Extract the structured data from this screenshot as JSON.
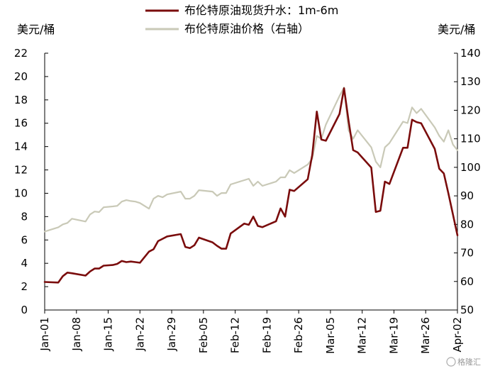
{
  "chart_data": {
    "type": "line",
    "left_unit": "美元/桶",
    "right_unit": "美元/桶",
    "left_axis": {
      "min": 0,
      "max": 22,
      "ticks": [
        0,
        2,
        4,
        6,
        8,
        10,
        12,
        14,
        16,
        18,
        20,
        22
      ]
    },
    "right_axis": {
      "min": 50,
      "max": 140,
      "ticks": [
        50,
        60,
        70,
        80,
        90,
        100,
        110,
        120,
        130,
        140
      ]
    },
    "x_labels": [
      "Jan-01",
      "Jan-08",
      "Jan-15",
      "Jan-22",
      "Jan-29",
      "Feb-05",
      "Feb-12",
      "Feb-19",
      "Feb-26",
      "Mar-05",
      "Mar-12",
      "Mar-19",
      "Mar-26",
      "Apr-02"
    ],
    "x_range": [
      0,
      91
    ],
    "series": [
      {
        "name": "布伦特原油现货升水：1m-6m",
        "axis": "left",
        "color": "#7a0c0c",
        "x": [
          0,
          3,
          4,
          5,
          6,
          9,
          10,
          11,
          12,
          13,
          15,
          16,
          17,
          18,
          19,
          20,
          21,
          23,
          24,
          25,
          26,
          27,
          30,
          31,
          32,
          33,
          34,
          37,
          38,
          39,
          40,
          41,
          44,
          45,
          46,
          47,
          48,
          51,
          52,
          53,
          54,
          55,
          58,
          59,
          60,
          61,
          62,
          65,
          66,
          67,
          68,
          69,
          72,
          73,
          74,
          75,
          76,
          79,
          80,
          81,
          82,
          83,
          86,
          87,
          88,
          89,
          90,
          91
        ],
        "y": [
          2.4,
          2.35,
          2.9,
          3.2,
          3.15,
          2.95,
          3.3,
          3.55,
          3.55,
          3.8,
          3.85,
          3.95,
          4.2,
          4.1,
          4.15,
          4.1,
          4.05,
          5.0,
          5.2,
          5.9,
          6.1,
          6.3,
          6.5,
          5.4,
          5.3,
          5.55,
          6.2,
          5.8,
          5.5,
          5.25,
          5.25,
          6.55,
          7.4,
          7.3,
          8.0,
          7.2,
          7.1,
          7.6,
          8.7,
          8.0,
          10.3,
          10.2,
          11.2,
          13.3,
          17.0,
          14.6,
          14.5,
          16.8,
          19.0,
          16.2,
          13.7,
          13.5,
          12.2,
          8.4,
          8.5,
          11.0,
          10.8,
          13.9,
          13.9,
          16.3,
          16.1,
          16.0,
          13.8,
          12.1,
          11.7,
          10.0,
          8.2,
          6.4
        ]
      },
      {
        "name": "布伦特原油价格（右轴）",
        "axis": "right",
        "color": "#c9c9b7",
        "x": [
          0,
          3,
          4,
          5,
          6,
          9,
          10,
          11,
          12,
          13,
          15,
          16,
          17,
          18,
          19,
          20,
          21,
          23,
          24,
          25,
          26,
          27,
          30,
          31,
          32,
          33,
          34,
          37,
          38,
          39,
          40,
          41,
          44,
          45,
          46,
          47,
          48,
          51,
          52,
          53,
          54,
          55,
          58,
          59,
          60,
          61,
          62,
          65,
          66,
          67,
          68,
          69,
          72,
          73,
          74,
          75,
          76,
          79,
          80,
          81,
          82,
          83,
          86,
          87,
          88,
          89,
          90,
          91
        ],
        "y": [
          77.5,
          79.0,
          80.0,
          80.5,
          82.0,
          81.0,
          83.5,
          84.5,
          84.3,
          86.0,
          86.3,
          86.5,
          88.0,
          88.5,
          88.2,
          88.0,
          87.5,
          85.5,
          89.0,
          90.0,
          89.5,
          90.5,
          91.5,
          89.0,
          89.0,
          90.0,
          92.0,
          91.5,
          90.0,
          91.0,
          91.0,
          94.0,
          95.5,
          96.0,
          93.5,
          95.0,
          93.5,
          95.0,
          96.5,
          96.5,
          99.0,
          98.0,
          101.0,
          103.0,
          111.0,
          110.0,
          115.0,
          125.0,
          128.0,
          113.0,
          110.0,
          113.0,
          107.0,
          102.0,
          100.0,
          107.0,
          108.5,
          116.0,
          115.5,
          121.0,
          119.0,
          120.5,
          114.0,
          111.0,
          109.0,
          113.0,
          108.0,
          106.0
        ]
      }
    ],
    "grid": false,
    "legend_position": "top-center"
  },
  "watermark": "格隆汇"
}
